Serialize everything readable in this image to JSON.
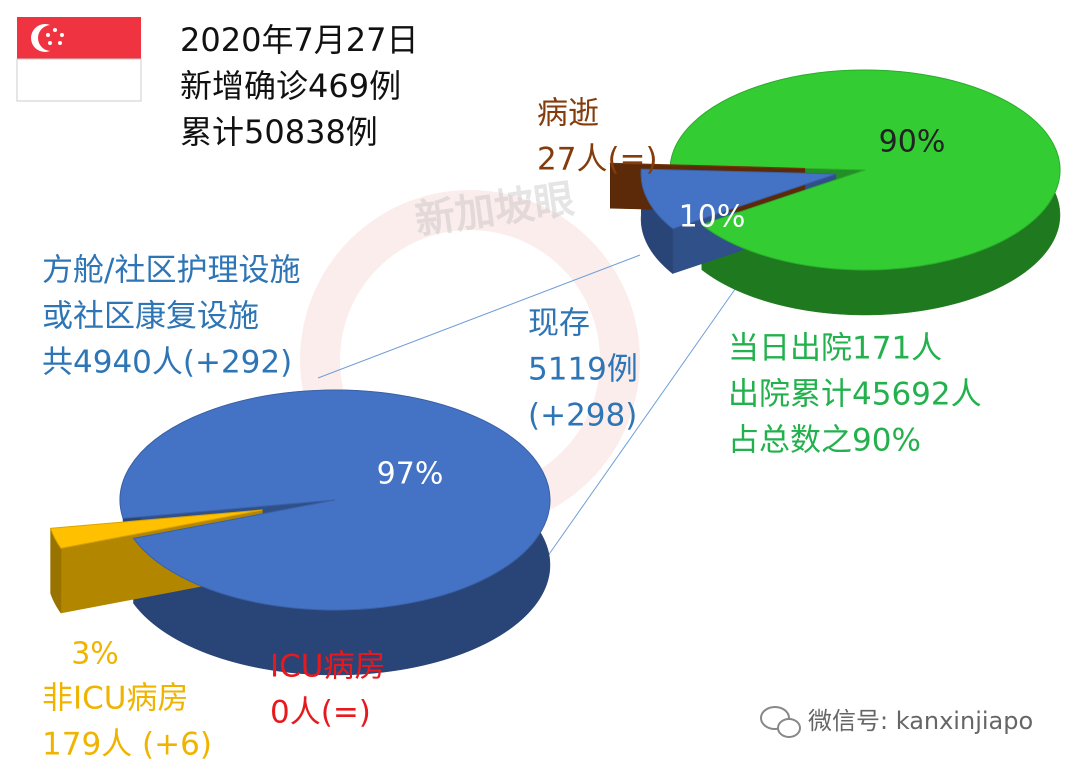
{
  "header": {
    "lines": [
      "2020年7月27日",
      "新增确诊469例",
      "累计50838例"
    ]
  },
  "watermark": "新加坡眼",
  "footer": "微信号: kanxinjiapo",
  "chart_data": [
    {
      "type": "pie",
      "values": [
        90,
        10,
        0.05
      ],
      "value_labels": [
        "90%",
        "10%",
        null
      ],
      "colors": [
        "#33cc33",
        "#4472c4",
        "#843c0c"
      ],
      "annotations": [
        {
          "lines": [
            "病逝",
            "27人(=)"
          ],
          "color": "#843c0c"
        },
        {
          "lines": [
            "当日出院171人",
            "出院累计45692人",
            "占总数之90%"
          ],
          "color": "#22b14c"
        }
      ]
    },
    {
      "type": "pie",
      "values": [
        97,
        3
      ],
      "value_labels": [
        "97%",
        "3%"
      ],
      "colors": [
        "#4472c4",
        "#ffc000"
      ],
      "annotations": [
        {
          "lines": [
            "现存",
            "5119例",
            "(+298)"
          ],
          "color": "#2e75b6"
        },
        {
          "lines": [
            "方舱/社区护理设施",
            "或社区康复设施",
            "共4940人(+292)"
          ],
          "color": "#2e75b6"
        },
        {
          "lines": [
            "非ICU病房",
            "179人 (+6)"
          ],
          "color": "#f0b400"
        },
        {
          "lines": [
            "ICU病房",
            "0人(=)"
          ],
          "color": "#e8191d"
        }
      ]
    }
  ]
}
